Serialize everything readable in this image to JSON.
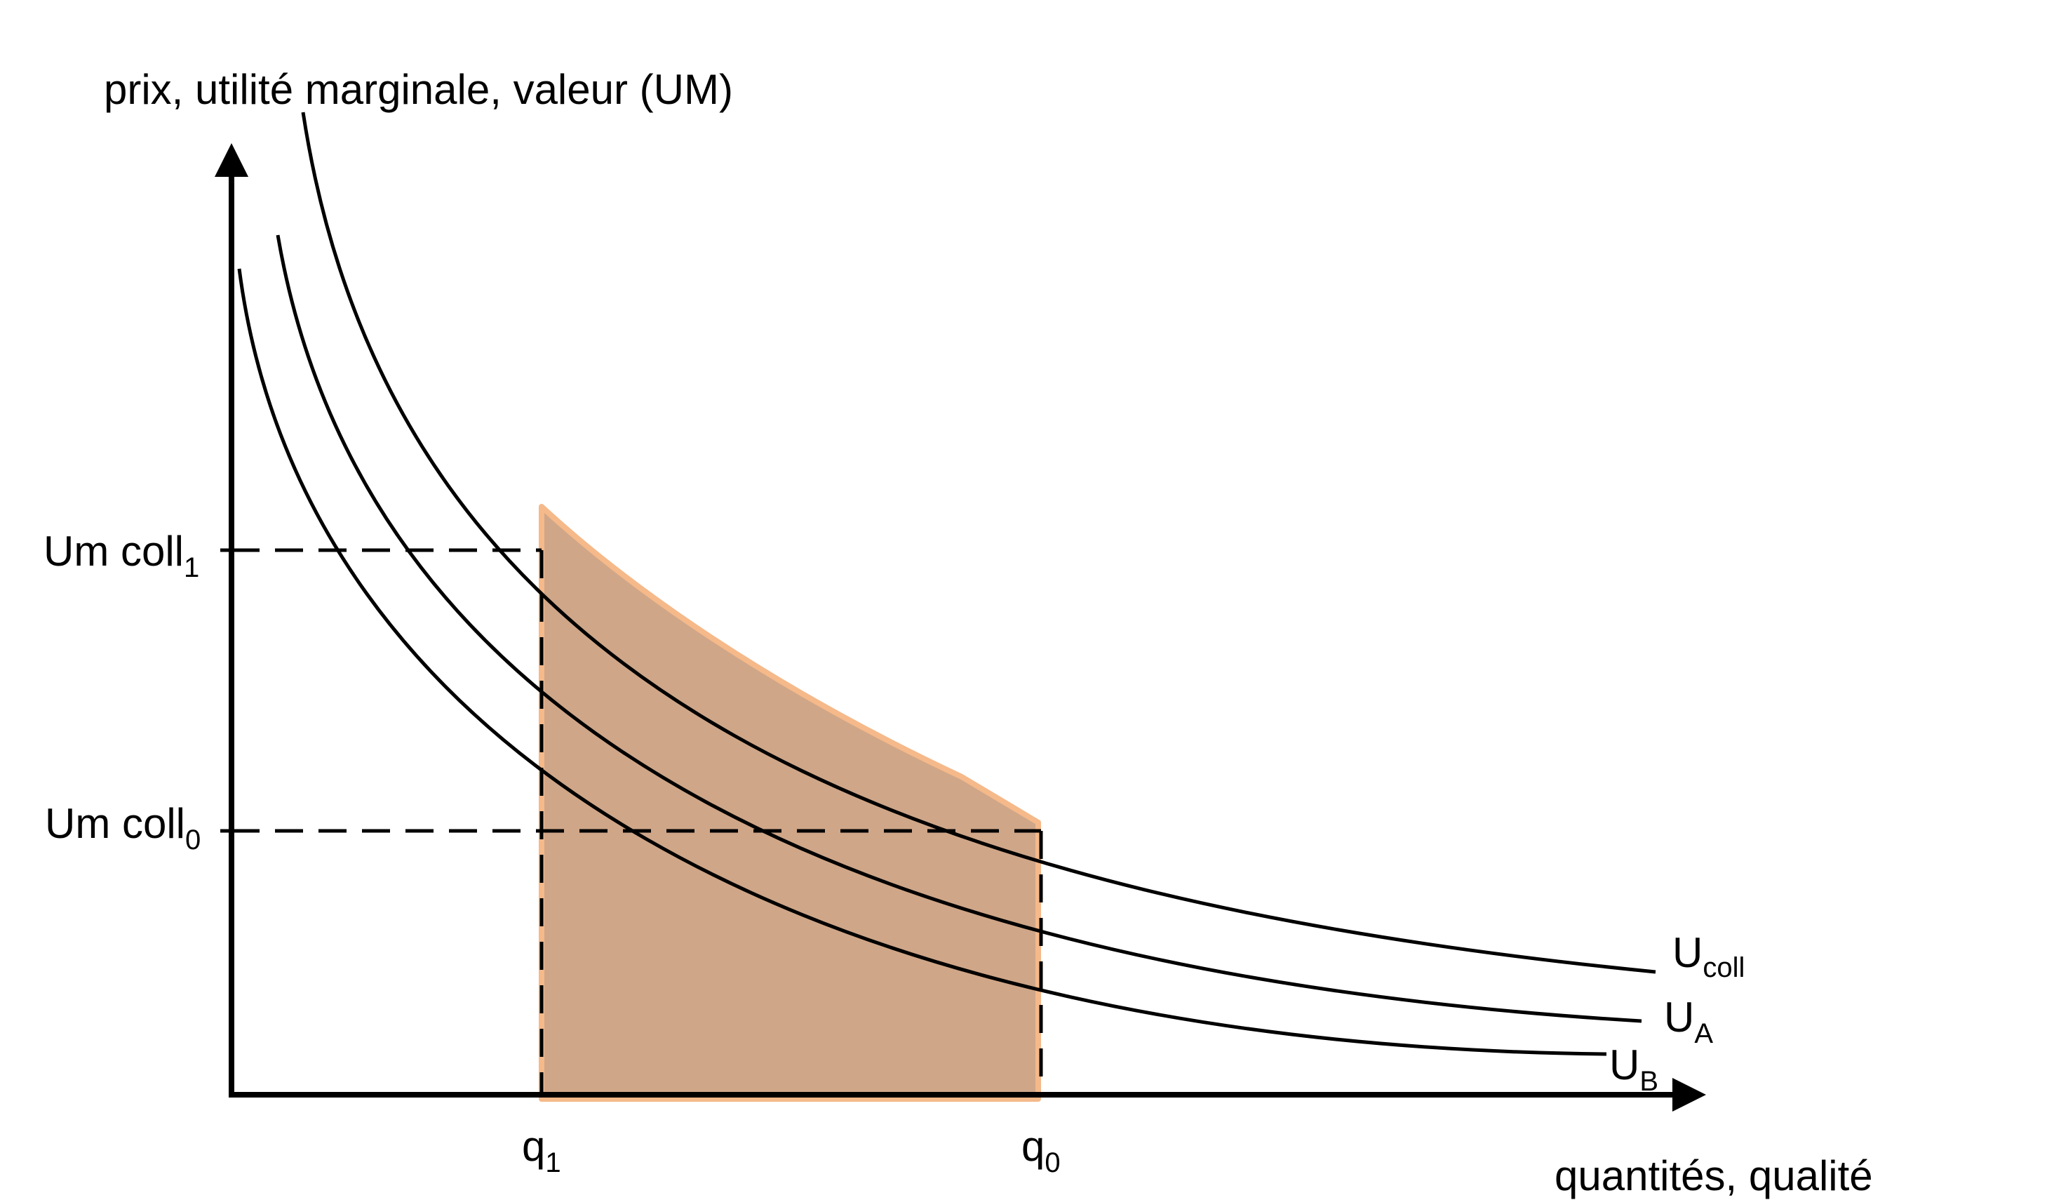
{
  "y_axis_label": "prix, utilité marginale, valeur (UM)",
  "x_axis_label": "quantités, qualité",
  "levels": [
    {
      "main": "Um coll",
      "sub": "1"
    },
    {
      "main": "Um coll",
      "sub": "0"
    }
  ],
  "quantities": [
    {
      "main": "q",
      "sub": "1"
    },
    {
      "main": "q",
      "sub": "0"
    }
  ],
  "curves": [
    {
      "main": "U",
      "sub": "coll"
    },
    {
      "main": "U",
      "sub": "A"
    },
    {
      "main": "U",
      "sub": "B"
    }
  ],
  "colors": {
    "shaded_area": "#cfa688",
    "shaded_outline": "#f5b98a",
    "ink": "#000000"
  }
}
